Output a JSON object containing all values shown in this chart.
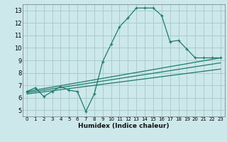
{
  "title": "",
  "xlabel": "Humidex (Indice chaleur)",
  "background_color": "#cce8ea",
  "grid_color": "#aacccc",
  "line_color": "#1e7b6e",
  "xlim": [
    -0.5,
    23.5
  ],
  "ylim": [
    4.5,
    13.5
  ],
  "xticks": [
    0,
    1,
    2,
    3,
    4,
    5,
    6,
    7,
    8,
    9,
    10,
    11,
    12,
    13,
    14,
    15,
    16,
    17,
    18,
    19,
    20,
    21,
    22,
    23
  ],
  "yticks": [
    5,
    6,
    7,
    8,
    9,
    10,
    11,
    12,
    13
  ],
  "series_main": {
    "x": [
      0,
      1,
      2,
      3,
      4,
      5,
      6,
      7,
      8,
      9,
      10,
      11,
      12,
      13,
      14,
      15,
      16,
      17,
      18,
      19,
      20,
      21,
      22,
      23
    ],
    "y": [
      6.5,
      6.8,
      6.1,
      6.5,
      6.9,
      6.6,
      6.5,
      4.9,
      6.3,
      8.9,
      10.3,
      11.7,
      12.4,
      13.2,
      13.2,
      13.2,
      12.6,
      10.5,
      10.6,
      9.9,
      9.2,
      9.2,
      9.2,
      9.2
    ]
  },
  "series_linear": [
    {
      "x": [
        0,
        23
      ],
      "y": [
        6.5,
        9.2
      ]
    },
    {
      "x": [
        0,
        23
      ],
      "y": [
        6.4,
        8.8
      ]
    },
    {
      "x": [
        0,
        23
      ],
      "y": [
        6.3,
        8.3
      ]
    }
  ]
}
